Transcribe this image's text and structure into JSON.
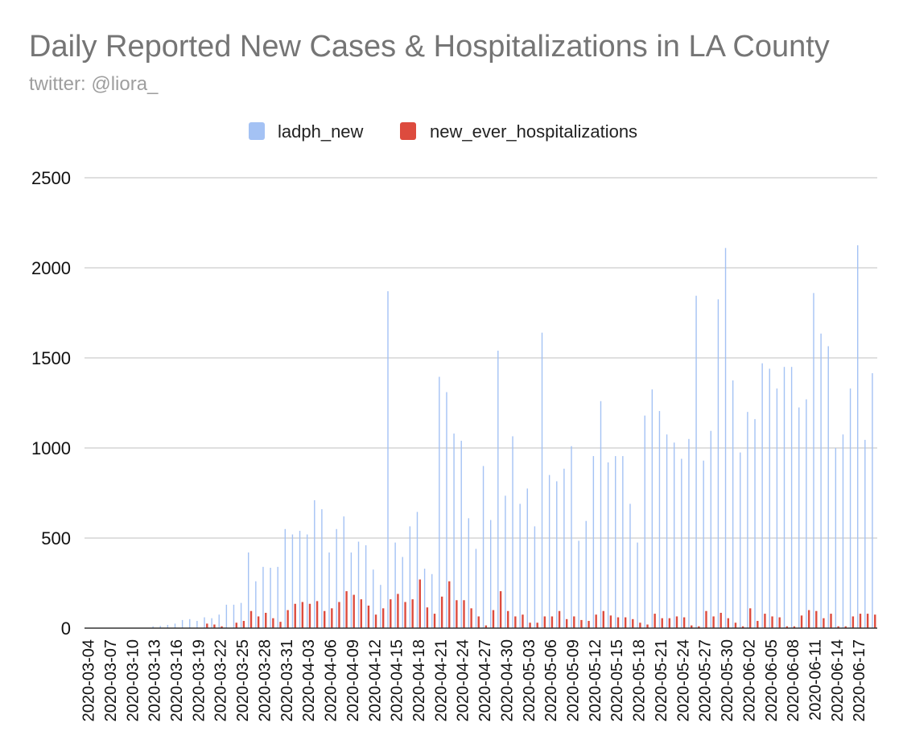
{
  "chart_data": {
    "type": "bar",
    "title": "Daily Reported New Cases & Hospitalizations in LA County",
    "subtitle": "twitter: @liora_",
    "xlabel": "",
    "ylabel": "",
    "ylim": [
      0,
      2500
    ],
    "yticks": [
      0,
      500,
      1000,
      1500,
      2000,
      2500
    ],
    "grid": true,
    "legend_position": "top-center",
    "categories": [
      "2020-03-04",
      "2020-03-05",
      "2020-03-06",
      "2020-03-07",
      "2020-03-08",
      "2020-03-09",
      "2020-03-10",
      "2020-03-11",
      "2020-03-12",
      "2020-03-13",
      "2020-03-14",
      "2020-03-15",
      "2020-03-16",
      "2020-03-17",
      "2020-03-18",
      "2020-03-19",
      "2020-03-20",
      "2020-03-21",
      "2020-03-22",
      "2020-03-23",
      "2020-03-24",
      "2020-03-25",
      "2020-03-26",
      "2020-03-27",
      "2020-03-28",
      "2020-03-29",
      "2020-03-30",
      "2020-03-31",
      "2020-04-01",
      "2020-04-02",
      "2020-04-03",
      "2020-04-04",
      "2020-04-05",
      "2020-04-06",
      "2020-04-07",
      "2020-04-08",
      "2020-04-09",
      "2020-04-10",
      "2020-04-11",
      "2020-04-12",
      "2020-04-13",
      "2020-04-14",
      "2020-04-15",
      "2020-04-16",
      "2020-04-17",
      "2020-04-18",
      "2020-04-19",
      "2020-04-20",
      "2020-04-21",
      "2020-04-22",
      "2020-04-23",
      "2020-04-24",
      "2020-04-25",
      "2020-04-26",
      "2020-04-27",
      "2020-04-28",
      "2020-04-29",
      "2020-04-30",
      "2020-05-01",
      "2020-05-02",
      "2020-05-03",
      "2020-05-04",
      "2020-05-05",
      "2020-05-06",
      "2020-05-07",
      "2020-05-08",
      "2020-05-09",
      "2020-05-10",
      "2020-05-11",
      "2020-05-12",
      "2020-05-13",
      "2020-05-14",
      "2020-05-15",
      "2020-05-16",
      "2020-05-17",
      "2020-05-18",
      "2020-05-19",
      "2020-05-20",
      "2020-05-21",
      "2020-05-22",
      "2020-05-23",
      "2020-05-24",
      "2020-05-25",
      "2020-05-26",
      "2020-05-27",
      "2020-05-28",
      "2020-05-29",
      "2020-05-30",
      "2020-05-31",
      "2020-06-01",
      "2020-06-02",
      "2020-06-03",
      "2020-06-04",
      "2020-06-05",
      "2020-06-06",
      "2020-06-07",
      "2020-06-08",
      "2020-06-09",
      "2020-06-10",
      "2020-06-11",
      "2020-06-12",
      "2020-06-13",
      "2020-06-14",
      "2020-06-15",
      "2020-06-16",
      "2020-06-17",
      "2020-06-18",
      "2020-06-19"
    ],
    "tick_every": 3,
    "series": [
      {
        "name": "ladph_new",
        "color": "#a4c2f4",
        "values": [
          2,
          2,
          2,
          2,
          2,
          2,
          2,
          2,
          2,
          10,
          12,
          18,
          25,
          45,
          50,
          40,
          60,
          55,
          75,
          130,
          130,
          140,
          420,
          260,
          340,
          335,
          340,
          550,
          520,
          540,
          520,
          710,
          660,
          420,
          550,
          620,
          420,
          480,
          460,
          325,
          240,
          1870,
          475,
          395,
          565,
          645,
          330,
          300,
          1395,
          1310,
          1080,
          1040,
          610,
          440,
          900,
          600,
          1540,
          735,
          1065,
          690,
          775,
          565,
          1640,
          850,
          815,
          885,
          1010,
          485,
          595,
          955,
          1260,
          920,
          955,
          955,
          690,
          475,
          1180,
          1325,
          1205,
          1075,
          1030,
          940,
          1050,
          1845,
          930,
          1095,
          1825,
          2110,
          1375,
          975,
          1200,
          1160,
          1470,
          1440,
          1330,
          1450,
          1450,
          1225,
          1270,
          1860,
          1635,
          1565,
          1000,
          1075,
          1330,
          2125,
          1045,
          1415
        ]
      },
      {
        "name": "new_ever_hospitalizations",
        "color": "#dd4b3e",
        "values": [
          0,
          0,
          0,
          0,
          0,
          0,
          0,
          0,
          0,
          0,
          0,
          0,
          0,
          0,
          0,
          0,
          25,
          20,
          10,
          0,
          30,
          40,
          95,
          65,
          85,
          55,
          35,
          100,
          135,
          145,
          135,
          150,
          95,
          110,
          145,
          205,
          185,
          160,
          125,
          75,
          110,
          160,
          190,
          145,
          160,
          270,
          115,
          80,
          175,
          260,
          155,
          155,
          110,
          65,
          15,
          100,
          205,
          95,
          65,
          75,
          30,
          30,
          65,
          65,
          95,
          50,
          65,
          45,
          40,
          75,
          95,
          70,
          60,
          60,
          50,
          30,
          20,
          80,
          55,
          55,
          65,
          60,
          15,
          10,
          95,
          65,
          85,
          55,
          30,
          10,
          110,
          40,
          80,
          65,
          60,
          10,
          10,
          70,
          100,
          95,
          55,
          80,
          10,
          10,
          65,
          80,
          80,
          75
        ]
      }
    ]
  }
}
